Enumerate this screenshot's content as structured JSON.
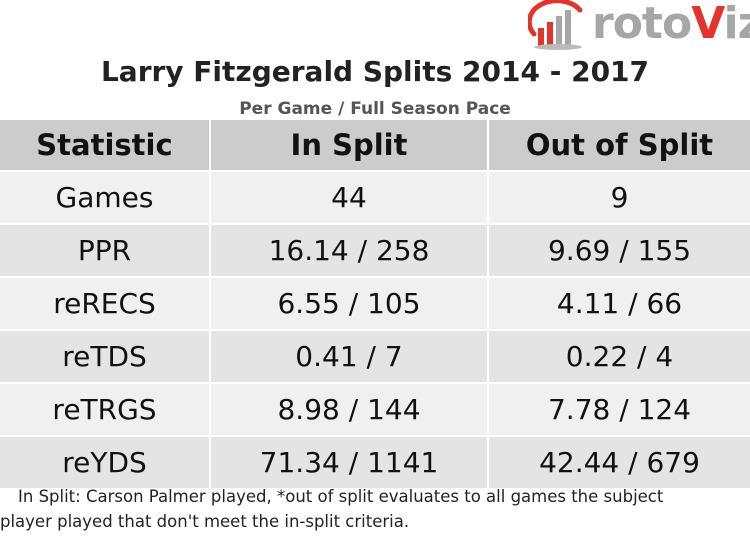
{
  "logo": {
    "prefix": "roto",
    "accent": "V",
    "suffix": "iz",
    "colors": {
      "grey": "#a6a6a6",
      "red": "#e0342c"
    }
  },
  "title": "Larry Fitzgerald Splits 2014 - 2017",
  "subtitle": "Per Game / Full Season Pace",
  "table": {
    "headers": [
      "Statistic",
      "In Split",
      "Out of Split"
    ],
    "rows": [
      [
        "Games",
        "44",
        "9"
      ],
      [
        "PPR",
        "16.14 / 258",
        "9.69 / 155"
      ],
      [
        "reRECS",
        "6.55 / 105",
        "4.11 / 66"
      ],
      [
        "reTDS",
        "0.41 / 7",
        "0.22 / 4"
      ],
      [
        "reTRGS",
        "8.98 / 144",
        "7.78 / 124"
      ],
      [
        "reYDS",
        "71.34 / 1141",
        "42.44 / 679"
      ]
    ]
  },
  "footnote": {
    "line1": "In Split: Carson Palmer played,  *out of split evaluates to all games the subject",
    "line2": "player played that don't meet the in-split criteria."
  }
}
